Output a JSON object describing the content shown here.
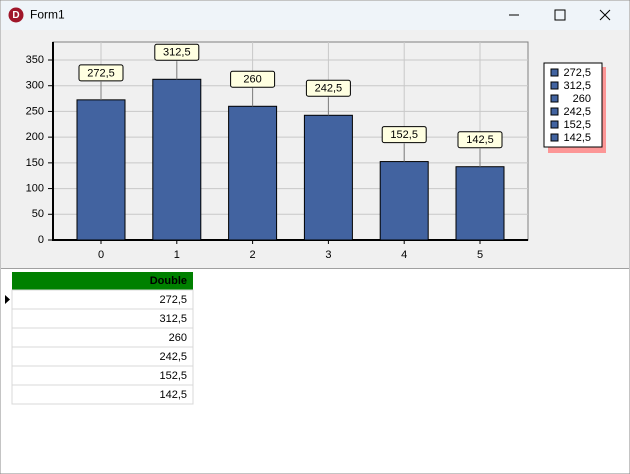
{
  "window": {
    "title": "Form1"
  },
  "chart_data": {
    "type": "bar",
    "categories": [
      "0",
      "1",
      "2",
      "3",
      "4",
      "5"
    ],
    "values": [
      272.5,
      312.5,
      260,
      242.5,
      152.5,
      142.5
    ],
    "value_labels": [
      "272,5",
      "312,5",
      "260",
      "242,5",
      "152,5",
      "142,5"
    ],
    "color": "#4263a0",
    "ylim": [
      0,
      385
    ],
    "yticks": [
      0,
      50,
      100,
      150,
      200,
      250,
      300,
      350
    ],
    "grid": true,
    "legend": "right"
  },
  "table": {
    "header": "Double",
    "rows": [
      [
        "272,5"
      ],
      [
        "312,5"
      ],
      [
        "260"
      ],
      [
        "242,5"
      ],
      [
        "152,5"
      ],
      [
        "142,5"
      ]
    ]
  }
}
